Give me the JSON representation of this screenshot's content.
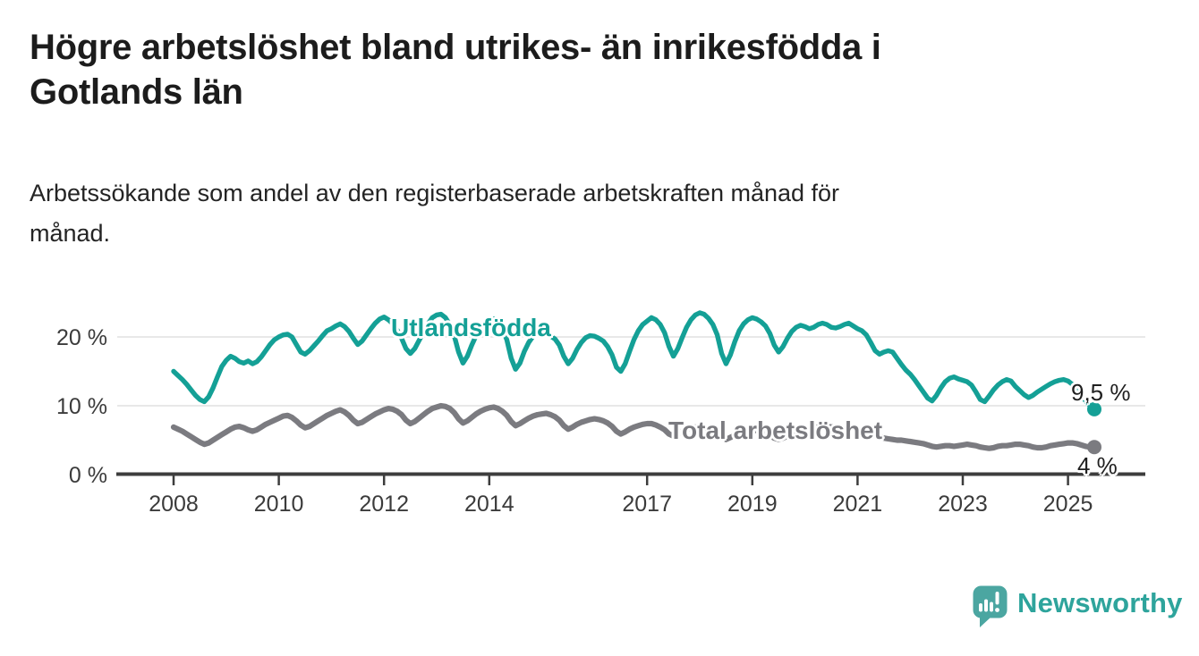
{
  "header": {
    "title_lines": [
      "Högre arbetslöshet bland utrikes- än inrikesfödda i",
      "Gotlands län"
    ],
    "subtitle_lines": [
      "Arbetssökande som andel av den registerbaserade arbetskraften månad för",
      "månad."
    ]
  },
  "chart_data": {
    "type": "line",
    "title": "Arbetssökande som andel av den registerbaserade arbetskraften månad för månad",
    "x_unit": "month",
    "x_start": "2008-01",
    "x_end": "2025-07",
    "xlabel": "",
    "ylabel": "",
    "ylim": [
      0,
      25
    ],
    "grid": "horizontal",
    "x_axis_ticks": [
      2008,
      2010,
      2012,
      2014,
      2017,
      2019,
      2021,
      2023,
      2025
    ],
    "y_axis_ticks": [
      {
        "value": 0,
        "label": "0 %"
      },
      {
        "value": 10,
        "label": "10 %"
      },
      {
        "value": 20,
        "label": "20 %"
      }
    ],
    "series": [
      {
        "name": "Utlandsfödda",
        "color": "#14A096",
        "end_label": "9,5 %",
        "end_value": 9.5,
        "values": [
          15.0,
          14.4,
          13.8,
          13.1,
          12.3,
          11.5,
          10.9,
          10.6,
          11.3,
          12.6,
          14.2,
          15.7,
          16.6,
          17.2,
          16.9,
          16.4,
          16.2,
          16.5,
          16.1,
          16.4,
          17.1,
          18.0,
          18.9,
          19.6,
          20.0,
          20.3,
          20.4,
          20.0,
          18.9,
          17.8,
          17.5,
          18.0,
          18.7,
          19.4,
          20.2,
          20.9,
          21.2,
          21.6,
          21.9,
          21.5,
          20.8,
          19.8,
          18.9,
          19.4,
          20.3,
          21.2,
          22.0,
          22.6,
          22.9,
          22.5,
          21.9,
          21.0,
          19.8,
          18.3,
          17.6,
          18.3,
          19.5,
          20.7,
          21.9,
          22.8,
          23.2,
          23.3,
          22.8,
          21.8,
          20.2,
          17.8,
          16.2,
          17.2,
          18.8,
          20.2,
          21.3,
          22.1,
          22.4,
          22.6,
          22.1,
          21.2,
          19.6,
          16.9,
          15.3,
          16.2,
          17.9,
          19.2,
          20.1,
          20.6,
          20.5,
          20.3,
          20.1,
          19.7,
          18.8,
          17.2,
          16.1,
          16.9,
          18.2,
          19.2,
          19.9,
          20.2,
          20.1,
          19.8,
          19.4,
          18.6,
          17.4,
          15.6,
          15.0,
          16.1,
          17.9,
          19.6,
          20.9,
          21.8,
          22.3,
          22.8,
          22.5,
          21.8,
          20.6,
          18.6,
          17.2,
          18.3,
          19.9,
          21.4,
          22.5,
          23.2,
          23.5,
          23.3,
          22.7,
          21.8,
          20.3,
          17.6,
          16.1,
          17.4,
          19.3,
          20.9,
          21.9,
          22.5,
          22.8,
          22.6,
          22.2,
          21.6,
          20.5,
          18.8,
          17.8,
          18.6,
          19.8,
          20.8,
          21.4,
          21.7,
          21.5,
          21.2,
          21.4,
          21.8,
          22.0,
          21.8,
          21.4,
          21.3,
          21.5,
          21.8,
          22.0,
          21.6,
          21.2,
          20.9,
          20.3,
          19.2,
          18.0,
          17.5,
          17.8,
          18.0,
          17.8,
          16.9,
          16.0,
          15.2,
          14.6,
          13.8,
          12.9,
          12.0,
          11.1,
          10.7,
          11.5,
          12.6,
          13.5,
          14.0,
          14.2,
          13.9,
          13.7,
          13.5,
          13.0,
          12.0,
          10.9,
          10.6,
          11.4,
          12.3,
          13.0,
          13.5,
          13.8,
          13.6,
          12.8,
          12.2,
          11.6,
          11.2,
          11.5,
          12.0,
          12.4,
          12.8,
          13.2,
          13.5,
          13.7,
          13.8,
          13.6,
          13.1,
          12.4,
          11.6,
          10.7,
          10.0,
          9.5
        ]
      },
      {
        "name": "Total arbetslöshet",
        "color": "#7B7B80",
        "end_label": "4 %",
        "end_value": 4.0,
        "values": [
          6.9,
          6.6,
          6.3,
          5.9,
          5.5,
          5.1,
          4.7,
          4.4,
          4.6,
          5.0,
          5.4,
          5.8,
          6.2,
          6.6,
          6.9,
          7.0,
          6.8,
          6.5,
          6.3,
          6.5,
          6.9,
          7.3,
          7.6,
          7.9,
          8.2,
          8.5,
          8.6,
          8.3,
          7.8,
          7.2,
          6.8,
          7.0,
          7.4,
          7.8,
          8.2,
          8.6,
          8.9,
          9.2,
          9.4,
          9.1,
          8.6,
          7.9,
          7.4,
          7.6,
          8.0,
          8.4,
          8.8,
          9.1,
          9.4,
          9.6,
          9.5,
          9.2,
          8.7,
          7.9,
          7.4,
          7.7,
          8.2,
          8.7,
          9.2,
          9.6,
          9.8,
          10.0,
          9.9,
          9.6,
          9.0,
          8.1,
          7.5,
          7.8,
          8.3,
          8.8,
          9.2,
          9.5,
          9.7,
          9.8,
          9.6,
          9.2,
          8.6,
          7.7,
          7.1,
          7.4,
          7.8,
          8.2,
          8.5,
          8.7,
          8.8,
          8.9,
          8.7,
          8.4,
          7.9,
          7.1,
          6.6,
          6.9,
          7.3,
          7.6,
          7.8,
          8.0,
          8.1,
          8.0,
          7.8,
          7.5,
          7.0,
          6.3,
          5.9,
          6.2,
          6.6,
          6.9,
          7.1,
          7.3,
          7.4,
          7.4,
          7.2,
          6.9,
          6.5,
          5.9,
          5.6,
          5.9,
          6.3,
          6.6,
          6.8,
          6.9,
          7.0,
          6.9,
          6.7,
          6.4,
          6.0,
          5.4,
          5.1,
          5.4,
          5.7,
          6.0,
          6.2,
          6.3,
          6.4,
          6.4,
          6.2,
          6.0,
          5.7,
          5.3,
          5.1,
          5.3,
          5.6,
          5.8,
          6.0,
          6.1,
          6.2,
          6.2,
          6.5,
          7.0,
          7.2,
          7.1,
          6.9,
          6.9,
          6.8,
          6.7,
          6.6,
          6.6,
          6.6,
          6.5,
          6.3,
          6.1,
          5.8,
          5.5,
          5.3,
          5.2,
          5.1,
          5.0,
          5.0,
          4.9,
          4.8,
          4.7,
          4.6,
          4.5,
          4.3,
          4.1,
          4.0,
          4.1,
          4.2,
          4.2,
          4.1,
          4.2,
          4.3,
          4.4,
          4.3,
          4.2,
          4.0,
          3.9,
          3.8,
          3.9,
          4.1,
          4.2,
          4.2,
          4.3,
          4.4,
          4.4,
          4.3,
          4.2,
          4.0,
          3.9,
          3.9,
          4.0,
          4.2,
          4.3,
          4.4,
          4.5,
          4.6,
          4.6,
          4.5,
          4.3,
          4.1,
          4.0,
          4.0
        ]
      }
    ],
    "legend_position": "inline-labels"
  },
  "footer": {
    "brand": "Newsworthy",
    "brand_color": "#2EA49C",
    "logo_icon": "speech-bubble-bar-chart-icon",
    "logo_icon_color": "#4BA6A1"
  }
}
